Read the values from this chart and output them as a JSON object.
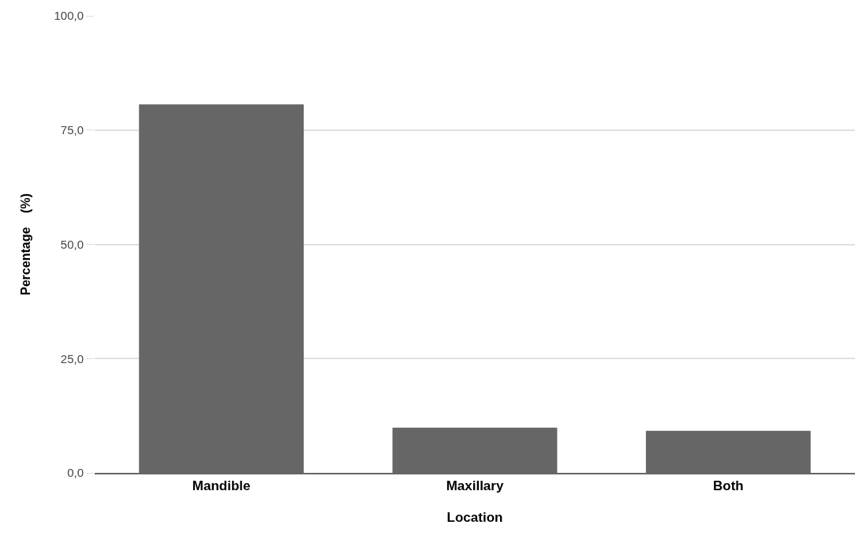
{
  "chart_data": {
    "type": "bar",
    "xlabel": "Location",
    "ylabel": "Percentage    (%)",
    "categories": [
      "Mandible",
      "Maxillary",
      "Both"
    ],
    "values": [
      80.6,
      9.9,
      9.2
    ],
    "color": "#666666",
    "ylim": [
      0,
      100
    ],
    "yticks": [
      {
        "value": 0,
        "label": "0,0"
      },
      {
        "value": 25,
        "label": "25,0"
      },
      {
        "value": 50,
        "label": "50,0"
      },
      {
        "value": 75,
        "label": "75,0"
      },
      {
        "value": 100,
        "label": "100,0"
      }
    ],
    "grid": "y",
    "legend": false
  }
}
